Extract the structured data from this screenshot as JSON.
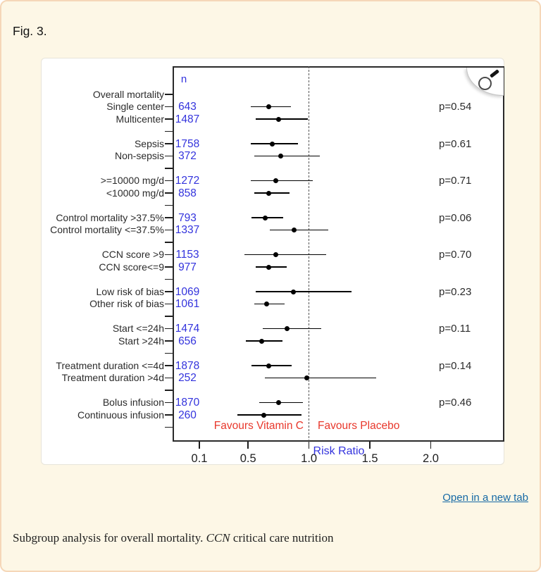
{
  "page": {
    "figure_label": "Fig. 3.",
    "open_in_new_tab": "Open in a new tab",
    "caption": {
      "prefix": "Subgroup analysis for overall mortality. ",
      "abbr": "CCN",
      "suffix": " critical care nutrition"
    },
    "colors": {
      "page_bg": "#fdf7e6",
      "page_border": "#f5d7b8",
      "panel_bg": "#ffffff",
      "link_blue": "#1569a5"
    }
  },
  "chart_data": {
    "type": "forest",
    "title": "",
    "xlabel": "Risk Ratio",
    "x_ticks": [
      0.1,
      0.5,
      1.0,
      1.5,
      2.0
    ],
    "x_range": [
      0.1,
      2.45
    ],
    "reference_line": 1.0,
    "grid": false,
    "n_header": "n",
    "favours_left": "Favours Vitamin C",
    "favours_right": "Favours Placebo",
    "colors": {
      "value_blue": "#3333dd",
      "favours_red": "#e8372b",
      "marker_black": "#000000",
      "frame": "#2a2a2a",
      "label_text": "#2b2b2b"
    },
    "rows": [
      {
        "label": "Overall mortality",
        "n": null,
        "rr": null,
        "lo": null,
        "hi": null,
        "p": null
      },
      {
        "label": "Single center",
        "n": "643",
        "rr": 0.67,
        "lo": 0.52,
        "hi": 0.85,
        "p": "p=0.54"
      },
      {
        "label": "Multicenter",
        "n": "1487",
        "rr": 0.75,
        "lo": 0.56,
        "hi": 0.99,
        "p": null
      },
      {
        "label": "",
        "n": null,
        "rr": null,
        "lo": null,
        "hi": null,
        "p": null
      },
      {
        "label": "Sepsis",
        "n": "1758",
        "rr": 0.7,
        "lo": 0.52,
        "hi": 0.91,
        "p": "p=0.61"
      },
      {
        "label": "Non-sepsis",
        "n": "372",
        "rr": 0.77,
        "lo": 0.55,
        "hi": 1.09,
        "p": null
      },
      {
        "label": "",
        "n": null,
        "rr": null,
        "lo": null,
        "hi": null,
        "p": null
      },
      {
        "label": ">=10000 mg/d",
        "n": "1272",
        "rr": 0.73,
        "lo": 0.52,
        "hi": 1.03,
        "p": "p=0.71"
      },
      {
        "label": "<10000 mg/d",
        "n": "858",
        "rr": 0.67,
        "lo": 0.55,
        "hi": 0.84,
        "p": null
      },
      {
        "label": "",
        "n": null,
        "rr": null,
        "lo": null,
        "hi": null,
        "p": null
      },
      {
        "label": "Control mortality >37.5%",
        "n": "793",
        "rr": 0.64,
        "lo": 0.53,
        "hi": 0.79,
        "p": "p=0.06"
      },
      {
        "label": "Control mortality <=37.5%",
        "n": "1337",
        "rr": 0.88,
        "lo": 0.68,
        "hi": 1.16,
        "p": null
      },
      {
        "label": "",
        "n": null,
        "rr": null,
        "lo": null,
        "hi": null,
        "p": null
      },
      {
        "label": "CCN score >9",
        "n": "1153",
        "rr": 0.73,
        "lo": 0.47,
        "hi": 1.14,
        "p": "p=0.70"
      },
      {
        "label": "CCN score<=9",
        "n": "977",
        "rr": 0.67,
        "lo": 0.56,
        "hi": 0.82,
        "p": null
      },
      {
        "label": "",
        "n": null,
        "rr": null,
        "lo": null,
        "hi": null,
        "p": null
      },
      {
        "label": "Low risk of bias",
        "n": "1069",
        "rr": 0.87,
        "lo": 0.56,
        "hi": 1.35,
        "p": "p=0.23"
      },
      {
        "label": "Other risk of bias",
        "n": "1061",
        "rr": 0.65,
        "lo": 0.55,
        "hi": 0.8,
        "p": null
      },
      {
        "label": "",
        "n": null,
        "rr": null,
        "lo": null,
        "hi": null,
        "p": null
      },
      {
        "label": "Start <=24h",
        "n": "1474",
        "rr": 0.82,
        "lo": 0.62,
        "hi": 1.1,
        "p": "p=0.11"
      },
      {
        "label": "Start >24h",
        "n": "656",
        "rr": 0.61,
        "lo": 0.48,
        "hi": 0.78,
        "p": null
      },
      {
        "label": "",
        "n": null,
        "rr": null,
        "lo": null,
        "hi": null,
        "p": null
      },
      {
        "label": "Treatment duration <=4d",
        "n": "1878",
        "rr": 0.67,
        "lo": 0.53,
        "hi": 0.86,
        "p": "p=0.14"
      },
      {
        "label": "Treatment duration >4d",
        "n": "252",
        "rr": 0.98,
        "lo": 0.64,
        "hi": 1.55,
        "p": null
      },
      {
        "label": "",
        "n": null,
        "rr": null,
        "lo": null,
        "hi": null,
        "p": null
      },
      {
        "label": "Bolus infusion",
        "n": "1870",
        "rr": 0.75,
        "lo": 0.59,
        "hi": 0.95,
        "p": "p=0.46"
      },
      {
        "label": "Continuous infusion",
        "n": "260",
        "rr": 0.63,
        "lo": 0.41,
        "hi": 0.94,
        "p": null
      },
      {
        "label": "",
        "n": null,
        "rr": null,
        "lo": null,
        "hi": null,
        "p": null
      }
    ]
  }
}
